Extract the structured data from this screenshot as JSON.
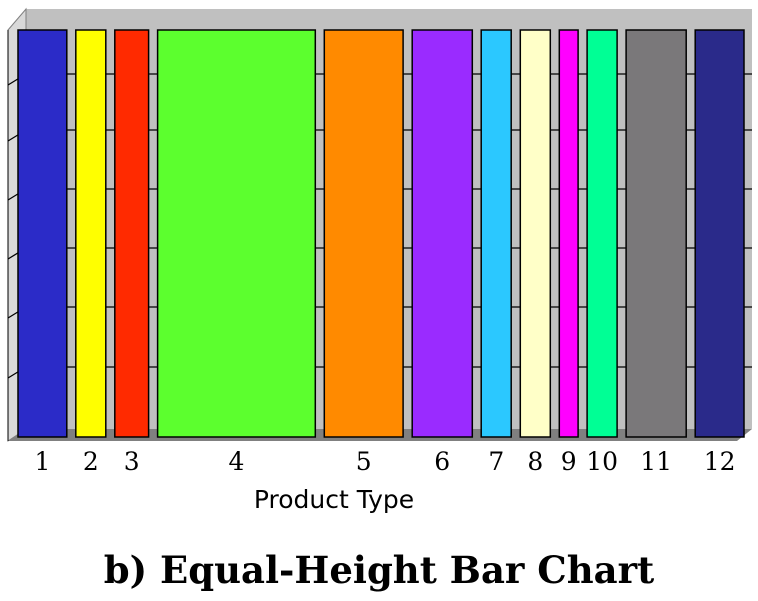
{
  "chart_data": {
    "type": "bar",
    "variant": "variable-width equal-height bars",
    "xlabel": "Product Type",
    "ylabel": "",
    "categories": [
      "1",
      "2",
      "3",
      "4",
      "5",
      "6",
      "7",
      "8",
      "9",
      "10",
      "11",
      "12"
    ],
    "widths": [
      6.5,
      4.0,
      4.5,
      21.0,
      10.5,
      8.0,
      4.0,
      4.0,
      2.5,
      4.0,
      8.0,
      6.5
    ],
    "values": [
      1,
      1,
      1,
      1,
      1,
      1,
      1,
      1,
      1,
      1,
      1,
      1
    ],
    "colors": [
      "#2b2bc8",
      "#ffff00",
      "#ff2a00",
      "#5cff2e",
      "#ff8a00",
      "#9a2bff",
      "#2bc8ff",
      "#ffffc8",
      "#ff00ff",
      "#00ff95",
      "#7a787a",
      "#2a2a8a"
    ],
    "grid": true,
    "legend": "none",
    "title": "b) Equal-Height Bar Chart"
  }
}
